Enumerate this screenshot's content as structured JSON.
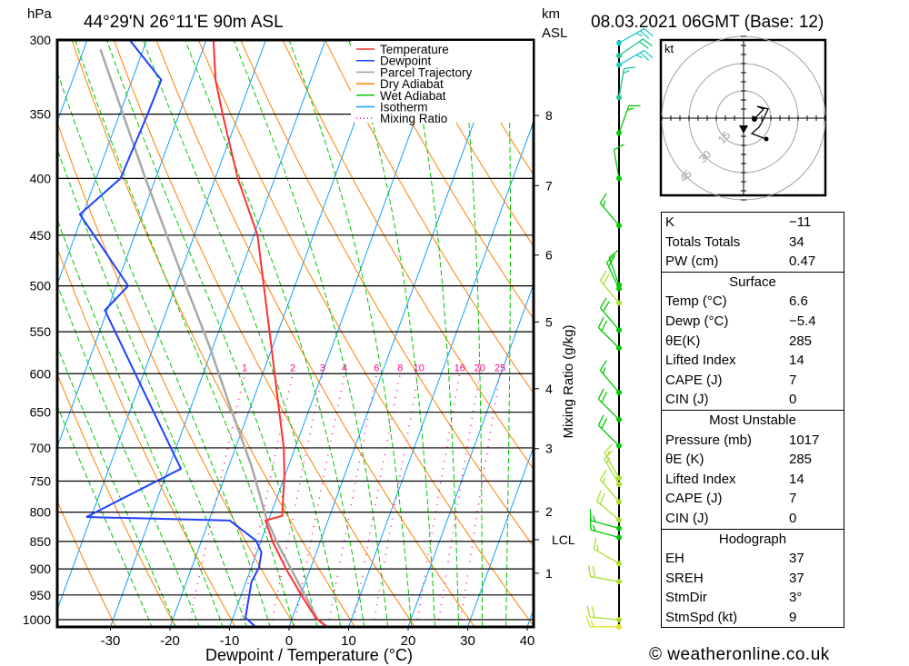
{
  "header": {
    "pressure_unit": "hPa",
    "location": "44°29'N  26°11'E  90m  ASL",
    "height_unit": "km",
    "height_unit2": "ASL",
    "datetime": "08.03.2021  06GMT  (Base: 12)"
  },
  "chart_data": {
    "type": "skew-t",
    "xlabel": "Dewpoint / Temperature (°C)",
    "right_axis_label": "Mixing Ratio (g/kg)",
    "pressure_ticks": [
      "300",
      "350",
      "400",
      "450",
      "500",
      "550",
      "600",
      "650",
      "700",
      "750",
      "800",
      "850",
      "900",
      "950",
      "1000"
    ],
    "temp_ticks": [
      "-30",
      "-20",
      "-10",
      "0",
      "10",
      "20",
      "30",
      "40"
    ],
    "km_ticks": [
      {
        "label": "8",
        "p": 351
      },
      {
        "label": "7",
        "p": 406
      },
      {
        "label": "6",
        "p": 469
      },
      {
        "label": "5",
        "p": 539
      },
      {
        "label": "4",
        "p": 619
      },
      {
        "label": "3",
        "p": 701
      },
      {
        "label": "2",
        "p": 799
      },
      {
        "label": "LCL",
        "p": 847
      },
      {
        "label": "1",
        "p": 908
      }
    ],
    "mixing_ratio_labels": [
      "1",
      "2",
      "3",
      "4",
      "6",
      "8",
      "10",
      "16",
      "20",
      "25"
    ],
    "legend": [
      {
        "label": "Temperature",
        "color": "#ff3030",
        "style": "solid"
      },
      {
        "label": "Dewpoint",
        "color": "#2040ff",
        "style": "solid"
      },
      {
        "label": "Parcel Trajectory",
        "color": "#a0a0a0",
        "style": "solid"
      },
      {
        "label": "Dry Adiabat",
        "color": "#ff8000",
        "style": "solid"
      },
      {
        "label": "Wet Adiabat",
        "color": "#00c800",
        "style": "solid"
      },
      {
        "label": "Isotherm",
        "color": "#10a0ff",
        "style": "solid"
      },
      {
        "label": "Mixing Ratio",
        "color": "#ff0090",
        "style": "dotted"
      }
    ],
    "temperature": [
      [
        1017,
        6.6
      ],
      [
        996,
        3.9
      ],
      [
        954,
        0.4
      ],
      [
        901,
        -4.0
      ],
      [
        852,
        -7.9
      ],
      [
        814,
        -10.5
      ],
      [
        806,
        -8.0
      ],
      [
        741,
        -10.1
      ],
      [
        700,
        -11.9
      ],
      [
        649,
        -14.9
      ],
      [
        566,
        -20.3
      ],
      [
        450,
        -29.4
      ],
      [
        400,
        -36.2
      ],
      [
        350,
        -42.7
      ],
      [
        326,
        -46.0
      ],
      [
        300,
        -48.8
      ]
    ],
    "dewpoint": [
      [
        1017,
        -5.4
      ],
      [
        996,
        -7.9
      ],
      [
        924,
        -9.1
      ],
      [
        898,
        -8.7
      ],
      [
        870,
        -9.2
      ],
      [
        849,
        -10.8
      ],
      [
        814,
        -16.5
      ],
      [
        808,
        -40.8
      ],
      [
        731,
        -27.9
      ],
      [
        526,
        -50.4
      ],
      [
        500,
        -48.0
      ],
      [
        431,
        -60.5
      ],
      [
        400,
        -55.9
      ],
      [
        350,
        -55.3
      ],
      [
        326,
        -55.1
      ],
      [
        300,
        -62.9
      ]
    ],
    "parcel": [
      [
        1017,
        6.6
      ],
      [
        1000,
        4.4
      ],
      [
        852,
        -7.2
      ],
      [
        810,
        -10.5
      ],
      [
        727,
        -16.2
      ],
      [
        642,
        -23.5
      ],
      [
        566,
        -30.7
      ],
      [
        500,
        -38.3
      ],
      [
        400,
        -51.7
      ],
      [
        306,
        -67.2
      ]
    ],
    "winds": [
      [
        302,
        60,
        25,
        "#20c8c8"
      ],
      [
        310,
        55,
        20,
        "#20c880"
      ],
      [
        316,
        60,
        25,
        "#20c8c8"
      ],
      [
        338,
        10,
        15,
        "#20c8a0"
      ],
      [
        364,
        20,
        15,
        "#00c800"
      ],
      [
        400,
        350,
        10,
        "#00c800"
      ],
      [
        441,
        320,
        15,
        "#00c800"
      ],
      [
        499,
        340,
        15,
        "#00c800"
      ],
      [
        503,
        335,
        15,
        "#00c800"
      ],
      [
        518,
        320,
        20,
        "#a8e030"
      ],
      [
        548,
        320,
        20,
        "#00c800"
      ],
      [
        569,
        315,
        20,
        "#00c800"
      ],
      [
        624,
        320,
        15,
        "#00c800"
      ],
      [
        660,
        315,
        20,
        "#00c800"
      ],
      [
        697,
        315,
        20,
        "#00c800"
      ],
      [
        745,
        330,
        15,
        "#a8e030"
      ],
      [
        755,
        330,
        15,
        "#a8e030"
      ],
      [
        783,
        320,
        15,
        "#a8e030"
      ],
      [
        813,
        310,
        20,
        "#a8e030"
      ],
      [
        827,
        285,
        15,
        "#00c800"
      ],
      [
        843,
        285,
        15,
        "#00c800"
      ],
      [
        890,
        300,
        15,
        "#a8e030"
      ],
      [
        924,
        280,
        20,
        "#a8e030"
      ],
      [
        1000,
        275,
        20,
        "#a8e030"
      ],
      [
        1015,
        270,
        15,
        "#e0e020"
      ]
    ]
  },
  "hodograph": {
    "unit": "kt",
    "rings": [
      "15",
      "30",
      "45"
    ],
    "trace": [
      [
        6,
        -0.5
      ],
      [
        11,
        5
      ],
      [
        7.5,
        6.5
      ],
      [
        13.5,
        5
      ],
      [
        10,
        -2.5
      ],
      [
        8.5,
        -5
      ],
      [
        4.5,
        -8.5
      ],
      [
        12.5,
        -11.5
      ]
    ],
    "storm_motion": [
      0,
      -6.5
    ]
  },
  "indices": {
    "top": [
      [
        "K",
        "−11"
      ],
      [
        "Totals Totals",
        "34"
      ],
      [
        "PW (cm)",
        "0.47"
      ]
    ],
    "surface": {
      "title": "Surface",
      "rows": [
        [
          "Temp (°C)",
          "6.6"
        ],
        [
          "Dewp (°C)",
          "−5.4"
        ],
        [
          "θE(K)",
          "285"
        ],
        [
          "Lifted Index",
          "14"
        ],
        [
          "CAPE (J)",
          "7"
        ],
        [
          "CIN (J)",
          "0"
        ]
      ]
    },
    "most_unstable": {
      "title": "Most Unstable",
      "rows": [
        [
          "Pressure (mb)",
          "1017"
        ],
        [
          "θE (K)",
          "285"
        ],
        [
          "Lifted Index",
          "14"
        ],
        [
          "CAPE (J)",
          "7"
        ],
        [
          "CIN (J)",
          "0"
        ]
      ]
    },
    "hodograph": {
      "title": "Hodograph",
      "rows": [
        [
          "EH",
          "37"
        ],
        [
          "SREH",
          "37"
        ],
        [
          "StmDir",
          "3°"
        ],
        [
          "StmSpd (kt)",
          "9"
        ]
      ]
    }
  },
  "footer": "© weatheronline.co.uk"
}
